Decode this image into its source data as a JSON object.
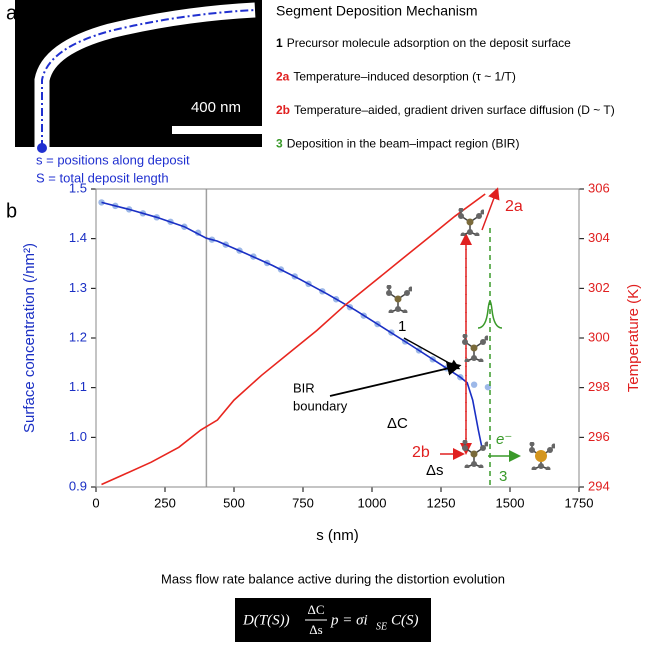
{
  "panel_a": {
    "label": "a",
    "scale_bar": "400 nm",
    "notes": [
      "s = positions along deposit",
      "S = total deposit length"
    ]
  },
  "mechanism": {
    "title": "Segment Deposition Mechanism",
    "items": [
      {
        "id": "1",
        "color": "#000000",
        "text": "Precursor molecule adsorption on the deposit surface"
      },
      {
        "id": "2a",
        "color": "#e02020",
        "text": "Temperature–induced desorption (τ ~ 1/T)"
      },
      {
        "id": "2b",
        "color": "#e02020",
        "text": "Temperature–aided, gradient driven surface diffusion (D ~ T)"
      },
      {
        "id": "3",
        "color": "#3a9a2a",
        "text": "Deposition in the beam–impact region (BIR)"
      }
    ]
  },
  "chart_data": {
    "type": "line",
    "label": "b",
    "x_label": "s (nm)",
    "y_label": "Surface concentration (/nm²)",
    "y2_label": "Temperature (K)",
    "xlim": [
      0,
      1750
    ],
    "xticks": [
      0,
      250,
      500,
      750,
      1000,
      1250,
      1500,
      1750
    ],
    "ylim": [
      0.9,
      1.5
    ],
    "yticks": [
      0.9,
      {
        "value": 1,
        "label": "1.0"
      },
      1.1,
      1.2,
      1.3,
      1.4,
      1.5
    ],
    "y2lim": [
      294,
      306
    ],
    "y2ticks": [
      294,
      296,
      298,
      300,
      302,
      304,
      306
    ],
    "y_color": "#1a2fc4",
    "y2_color": "#e02020",
    "series": [
      {
        "color": "#9db8e8",
        "marker": true,
        "x": [
          20,
          70,
          120,
          170,
          220,
          270,
          320,
          370,
          420,
          470,
          520,
          570,
          620,
          670,
          720,
          770,
          820,
          870,
          920,
          970,
          1020,
          1070,
          1120,
          1170,
          1220,
          1270,
          1320,
          1370,
          1420
        ],
        "values": [
          1.473,
          1.466,
          1.459,
          1.451,
          1.443,
          1.434,
          1.424,
          1.412,
          1.398,
          1.388,
          1.376,
          1.364,
          1.351,
          1.338,
          1.324,
          1.309,
          1.294,
          1.278,
          1.262,
          1.245,
          1.228,
          1.211,
          1.193,
          1.175,
          1.157,
          1.139,
          1.121,
          1.106,
          1.101
        ]
      },
      {
        "color": "#1a2fc4",
        "marker": false,
        "x": [
          20,
          120,
          220,
          320,
          400,
          440,
          540,
          640,
          740,
          840,
          940,
          1040,
          1140,
          1240,
          1320,
          1345,
          1365,
          1385,
          1400
        ],
        "values": [
          1.473,
          1.459,
          1.443,
          1.424,
          1.401,
          1.395,
          1.371,
          1.346,
          1.318,
          1.288,
          1.256,
          1.221,
          1.186,
          1.15,
          1.121,
          1.11,
          1.075,
          1.015,
          0.975
        ]
      },
      {
        "color": "#e8261f",
        "marker": false,
        "axis": "y2",
        "x": [
          20,
          100,
          200,
          300,
          380,
          440,
          500,
          600,
          700,
          800,
          900,
          1000,
          1100,
          1200,
          1300,
          1410
        ],
        "values": [
          294.1,
          294.5,
          295.0,
          295.6,
          296.3,
          296.7,
          297.5,
          298.5,
          299.4,
          300.3,
          301.3,
          302.2,
          303.1,
          304.0,
          304.9,
          305.8
        ]
      }
    ],
    "annotations": {
      "desorption": "2a",
      "adsorption": "1",
      "bir_boundary": [
        "BIR",
        "boundary"
      ],
      "delta_c": "ΔC",
      "diffusion": "2b",
      "delta_s": "Δs",
      "electron": "e⁻",
      "deposition": "3"
    }
  },
  "caption": "Mass flow rate balance active during the distortion evolution",
  "equation": {
    "lhs": "D(T(S))",
    "numerator": "ΔC",
    "denominator": "Δs",
    "mid": "p = σi",
    "subscript": "SE",
    "rhs": "C(S)"
  }
}
